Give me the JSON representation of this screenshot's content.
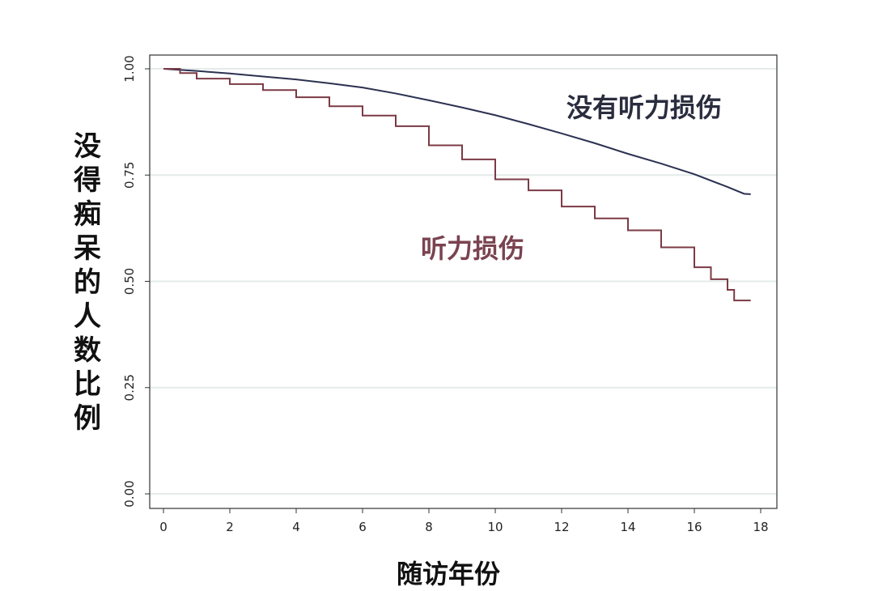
{
  "chart_data": {
    "type": "line",
    "title": "",
    "xlabel": "随访年份",
    "ylabel": "没得痴呆的人数比例",
    "xlim": [
      0,
      18
    ],
    "ylim": [
      0,
      1
    ],
    "xticks": [
      "0",
      "2",
      "4",
      "6",
      "8",
      "10",
      "12",
      "14",
      "16",
      "18"
    ],
    "yticks": [
      "0.00",
      "0.25",
      "0.50",
      "0.75",
      "1.00"
    ],
    "grid": "horizontal",
    "series": [
      {
        "name": "没有听力损伤",
        "color": "#2c3150",
        "x": [
          0,
          1,
          2,
          3,
          4,
          5,
          6,
          7,
          8,
          9,
          10,
          11,
          12,
          13,
          14,
          15,
          16,
          17,
          17.5,
          17.7
        ],
        "y": [
          1.0,
          0.995,
          0.989,
          0.982,
          0.975,
          0.966,
          0.956,
          0.942,
          0.926,
          0.909,
          0.891,
          0.87,
          0.848,
          0.825,
          0.8,
          0.777,
          0.752,
          0.722,
          0.706,
          0.705
        ]
      },
      {
        "name": "听力损伤",
        "color": "#7b3a45",
        "x": [
          0,
          0.5,
          1,
          2,
          3,
          4,
          5,
          6,
          7,
          8,
          9,
          10,
          11,
          12,
          13,
          14,
          15,
          16,
          16.5,
          17,
          17.2,
          17.7
        ],
        "y": [
          1.0,
          0.99,
          0.977,
          0.964,
          0.95,
          0.933,
          0.912,
          0.89,
          0.865,
          0.82,
          0.787,
          0.74,
          0.714,
          0.676,
          0.648,
          0.62,
          0.58,
          0.533,
          0.505,
          0.48,
          0.455,
          0.455
        ]
      }
    ]
  }
}
